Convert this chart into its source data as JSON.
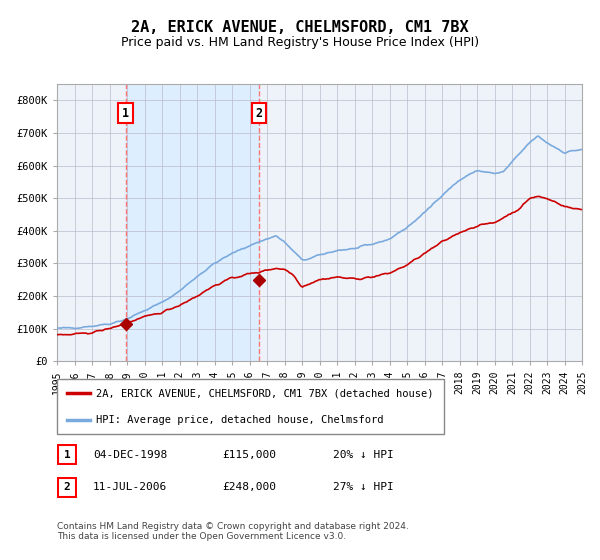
{
  "title": "2A, ERICK AVENUE, CHELMSFORD, CM1 7BX",
  "subtitle": "Price paid vs. HM Land Registry's House Price Index (HPI)",
  "ylim": [
    0,
    850000
  ],
  "yticks": [
    0,
    100000,
    200000,
    300000,
    400000,
    500000,
    600000,
    700000,
    800000
  ],
  "ytick_labels": [
    "£0",
    "£100K",
    "£200K",
    "£300K",
    "£400K",
    "£500K",
    "£600K",
    "£700K",
    "£800K"
  ],
  "x_start_year": 1995,
  "x_end_year": 2025,
  "hpi_color": "#7aaadd",
  "price_color": "#cc0000",
  "marker_color": "#aa0000",
  "shade_color": "#ddeeff",
  "vline_color": "#ff7777",
  "sale1_year": 1998.92,
  "sale1_price": 115000,
  "sale1_label": "1",
  "sale2_year": 2006.54,
  "sale2_price": 248000,
  "sale2_label": "2",
  "legend_line1": "2A, ERICK AVENUE, CHELMSFORD, CM1 7BX (detached house)",
  "legend_line2": "HPI: Average price, detached house, Chelmsford",
  "table_row1": [
    "1",
    "04-DEC-1998",
    "£115,000",
    "20% ↓ HPI"
  ],
  "table_row2": [
    "2",
    "11-JUL-2006",
    "£248,000",
    "27% ↓ HPI"
  ],
  "footnote": "Contains HM Land Registry data © Crown copyright and database right 2024.\nThis data is licensed under the Open Government Licence v3.0.",
  "background_color": "#ffffff",
  "plot_bg_color": "#eef3fa",
  "grid_color": "#bbbbcc",
  "title_fontsize": 11,
  "subtitle_fontsize": 9,
  "tick_fontsize": 7.5
}
